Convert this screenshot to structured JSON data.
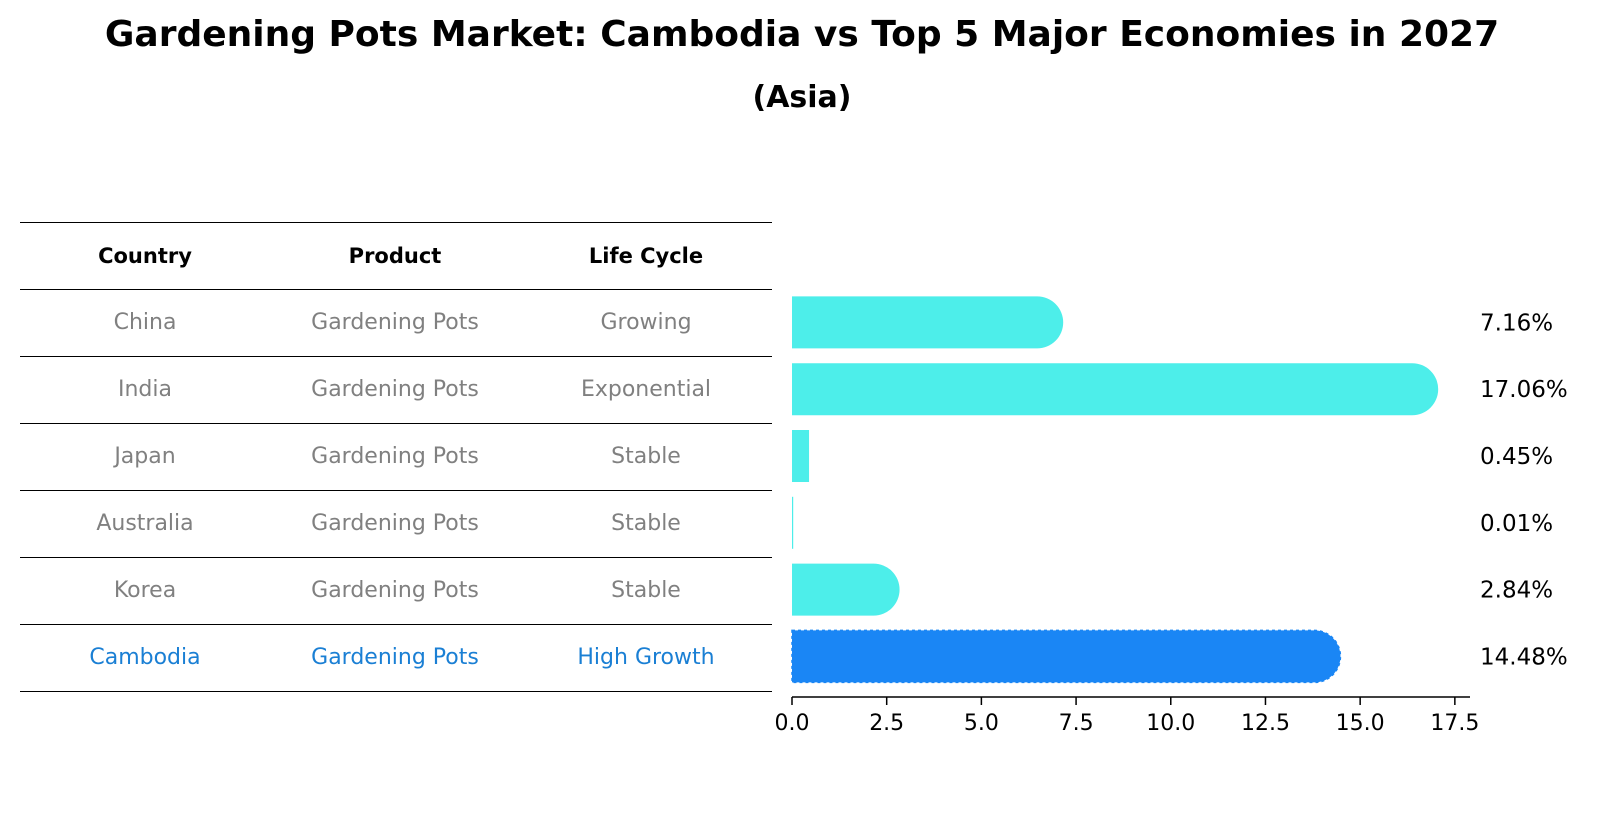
{
  "title": "Gardening Pots Market: Cambodia vs Top 5 Major Economies in 2027",
  "subtitle": "(Asia)",
  "table": {
    "headers": [
      "Country",
      "Product",
      "Life Cycle"
    ],
    "rows": [
      {
        "country": "China",
        "product": "Gardening Pots",
        "life_cycle": "Growing"
      },
      {
        "country": "India",
        "product": "Gardening Pots",
        "life_cycle": "Exponential"
      },
      {
        "country": "Japan",
        "product": "Gardening Pots",
        "life_cycle": "Stable"
      },
      {
        "country": "Australia",
        "product": "Gardening Pots",
        "life_cycle": "Stable"
      },
      {
        "country": "Korea",
        "product": "Gardening Pots",
        "life_cycle": "Stable"
      },
      {
        "country": "Cambodia",
        "product": "Gardening Pots",
        "life_cycle": "High Growth"
      }
    ]
  },
  "colors": {
    "bar": "#4DEEEA",
    "highlight_bar": "#1A86F5",
    "highlight_text": "#1A7FD4",
    "muted_text": "#808080"
  },
  "chart_data": {
    "type": "bar",
    "orientation": "horizontal",
    "categories": [
      "China",
      "India",
      "Japan",
      "Australia",
      "Korea",
      "Cambodia"
    ],
    "values": [
      7.16,
      17.06,
      0.45,
      0.01,
      2.84,
      14.48
    ],
    "value_labels": [
      "7.16%",
      "17.06%",
      "0.45%",
      "0.01%",
      "2.84%",
      "14.48%"
    ],
    "highlight": "Cambodia",
    "xlim": [
      0,
      17.9
    ],
    "xticks": [
      0.0,
      2.5,
      5.0,
      7.5,
      10.0,
      12.5,
      15.0,
      17.5
    ],
    "xtick_labels": [
      "0.0",
      "2.5",
      "5.0",
      "7.5",
      "10.0",
      "12.5",
      "15.0",
      "17.5"
    ],
    "xlabel": "",
    "ylabel": "",
    "grid": false
  }
}
